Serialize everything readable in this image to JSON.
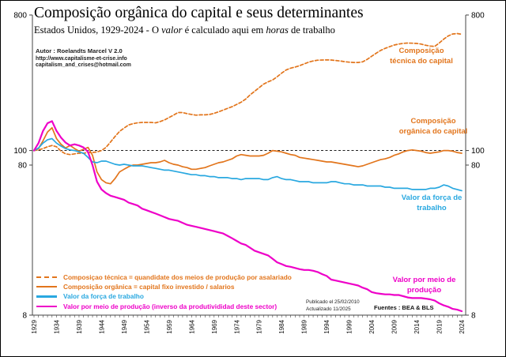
{
  "header": {
    "title": "Composição orgânica do capital e seus determinantes",
    "subtitle_prefix": "Estados Unidos, 1929-2024  -  O ",
    "subtitle_italic1": "valor",
    "subtitle_mid": " é calculado aqui em ",
    "subtitle_italic2": "horas",
    "subtitle_suffix": " de trabalho"
  },
  "author": {
    "line1": "Autor : Roelandts Marcel  V 2.0",
    "line2": "http://www.capitalisme-et-crise.info",
    "line3": "capitalism_and_crises@hotmail.com"
  },
  "footnotes": {
    "published": "Publicado el 25/02/2010",
    "updated": "Actualizado 11/2025",
    "sources": "Fuentes : BEA & BLS"
  },
  "chart_data": {
    "type": "line",
    "title": "Composição orgânica do capital e seus determinantes",
    "x_start_year": 1929,
    "x_end_year": 2024,
    "x_tick_labels": [
      "1929",
      "1934",
      "1939",
      "1944",
      "1949",
      "1954",
      "1959",
      "1964",
      "1969",
      "1974",
      "1979",
      "1984",
      "1989",
      "1994",
      "1999",
      "2004",
      "2009",
      "2014",
      "2019",
      "2024"
    ],
    "y_scale": "log",
    "ylim": [
      8,
      800
    ],
    "y_ticks": [
      800,
      100,
      80,
      8
    ],
    "reference_value": 100,
    "reference_color": "#000000",
    "series": [
      {
        "id": "composicao-tecnica",
        "legend_label": "Composiçao técnica  =  quandidate dos meios de produção por asalariado",
        "curve_label": "Composição técnica do capital",
        "color": "#E2751C",
        "dashed": true,
        "values": [
          100,
          101,
          103,
          106,
          108,
          106,
          99,
          95,
          94,
          95,
          96,
          96,
          97,
          97,
          98,
          100,
          105,
          114,
          124,
          134,
          141,
          148,
          151,
          153,
          154,
          154,
          154,
          153,
          156,
          160,
          166,
          172,
          179,
          179,
          176,
          174,
          172,
          173,
          173,
          174,
          177,
          181,
          186,
          191,
          196,
          203,
          210,
          220,
          235,
          248,
          262,
          277,
          287,
          295,
          310,
          328,
          344,
          354,
          360,
          368,
          378,
          388,
          395,
          400,
          401,
          402,
          401,
          398,
          395,
          391,
          388,
          386,
          386,
          390,
          405,
          425,
          445,
          465,
          480,
          492,
          505,
          512,
          518,
          520,
          519,
          517,
          512,
          503,
          497,
          494,
          520,
          552,
          580,
          598,
          602,
          595
        ]
      },
      {
        "id": "composicao-organica",
        "legend_label": "Composição orgânica  =  capital fixo investido / salarios",
        "curve_label": "Composição orgânica do capital",
        "color": "#E2751C",
        "dashed": false,
        "values": [
          100,
          103,
          116,
          133,
          142,
          120,
          110,
          104,
          108,
          103,
          99,
          102,
          105,
          93,
          72,
          64,
          61,
          60,
          65,
          72,
          75,
          78,
          80,
          80,
          81,
          82,
          83,
          83,
          84,
          86,
          83,
          81,
          80,
          78,
          77,
          75,
          75,
          76,
          77,
          79,
          81,
          83,
          84,
          86,
          88,
          92,
          94,
          93,
          92,
          92,
          92,
          93,
          96,
          100,
          99,
          98,
          96,
          94,
          93,
          90,
          89,
          88,
          87,
          86,
          85,
          84,
          84,
          83,
          82,
          81,
          80,
          79,
          78,
          79,
          81,
          83,
          85,
          87,
          88,
          90,
          93,
          95,
          98,
          100,
          101,
          100,
          99,
          97,
          96,
          97,
          98,
          100,
          100,
          99,
          97,
          96
        ]
      },
      {
        "id": "valor-forca-trabalho",
        "legend_label": "Valor da força de trabalho",
        "curve_label": "Valor da força de trabalho",
        "color": "#29A8E0",
        "dashed": false,
        "values": [
          100,
          104,
          112,
          118,
          120,
          112,
          107,
          103,
          101,
          100,
          98,
          96,
          90,
          84,
          83,
          85,
          85,
          83,
          81,
          80,
          81,
          80,
          79,
          79,
          79,
          78,
          77,
          76,
          75,
          74,
          74,
          73,
          72,
          71,
          70,
          69,
          69,
          68,
          68,
          67,
          67,
          66,
          66,
          66,
          65,
          65,
          64,
          65,
          65,
          65,
          65,
          64,
          64,
          66,
          67,
          65,
          64,
          64,
          63,
          62,
          62,
          62,
          61,
          61,
          61,
          61,
          62,
          62,
          61,
          60,
          60,
          59,
          59,
          59,
          58,
          58,
          58,
          58,
          57,
          57,
          56,
          56,
          56,
          56,
          55,
          55,
          55,
          55,
          56,
          56,
          57,
          59,
          58,
          56,
          55,
          54
        ]
      },
      {
        "id": "valor-meio-producao",
        "legend_label": "Valor por meio de produção (inverso da produtivididad deste sector)",
        "curve_label": "Valor por meio de produção",
        "color": "#EE00C8",
        "dashed": false,
        "values": [
          100,
          112,
          135,
          152,
          157,
          135,
          122,
          113,
          108,
          110,
          108,
          105,
          98,
          80,
          62,
          55,
          52,
          50,
          49,
          48,
          47,
          45,
          44,
          43,
          41,
          40,
          39,
          38,
          37,
          36,
          35,
          34.5,
          34,
          33,
          32,
          31.5,
          31,
          30.5,
          30,
          29.5,
          29,
          28.5,
          28,
          27,
          26,
          25,
          24,
          23.5,
          22.5,
          21.5,
          21,
          20.5,
          20,
          19,
          18,
          17.5,
          17,
          16.8,
          16.5,
          16.2,
          16,
          16,
          15.8,
          15.5,
          15,
          14.6,
          13.8,
          13.6,
          13.4,
          13.2,
          13,
          12.8,
          12.6,
          12.2,
          11.9,
          11.4,
          11.2,
          11.1,
          11,
          11,
          10.9,
          10.9,
          10.7,
          10.5,
          10.4,
          10.4,
          10.4,
          10.3,
          10.2,
          10,
          9.6,
          9.3,
          9.1,
          8.8,
          8.7,
          8.5
        ]
      }
    ]
  }
}
